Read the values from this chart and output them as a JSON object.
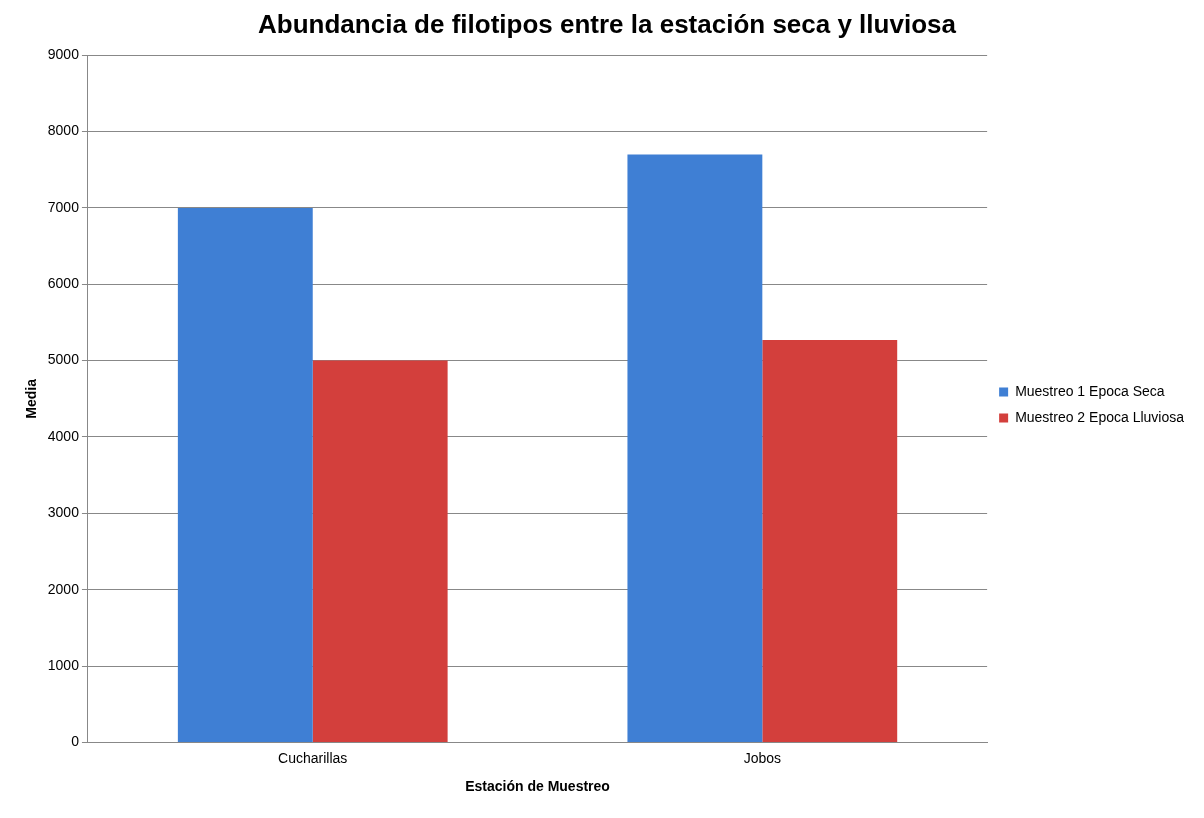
{
  "chart_data": {
    "type": "bar",
    "title": "Abundancia de filotipos entre la estación seca y lluviosa",
    "xlabel": "Estación de Muestreo",
    "ylabel": "Media",
    "categories": [
      "Cucharillas",
      "Jobos"
    ],
    "series": [
      {
        "name": "Muestreo 1 Epoca Seca",
        "color": "#3f7fd4",
        "values": [
          7000,
          7700
        ]
      },
      {
        "name": "Muestreo 2 Epoca Lluviosa",
        "color": "#d33f3c",
        "values": [
          5000,
          5270
        ]
      }
    ],
    "ylim": [
      0,
      9000
    ],
    "yticks": [
      0,
      1000,
      2000,
      3000,
      4000,
      5000,
      6000,
      7000,
      8000,
      9000
    ],
    "grid": "y",
    "legend": "right"
  }
}
